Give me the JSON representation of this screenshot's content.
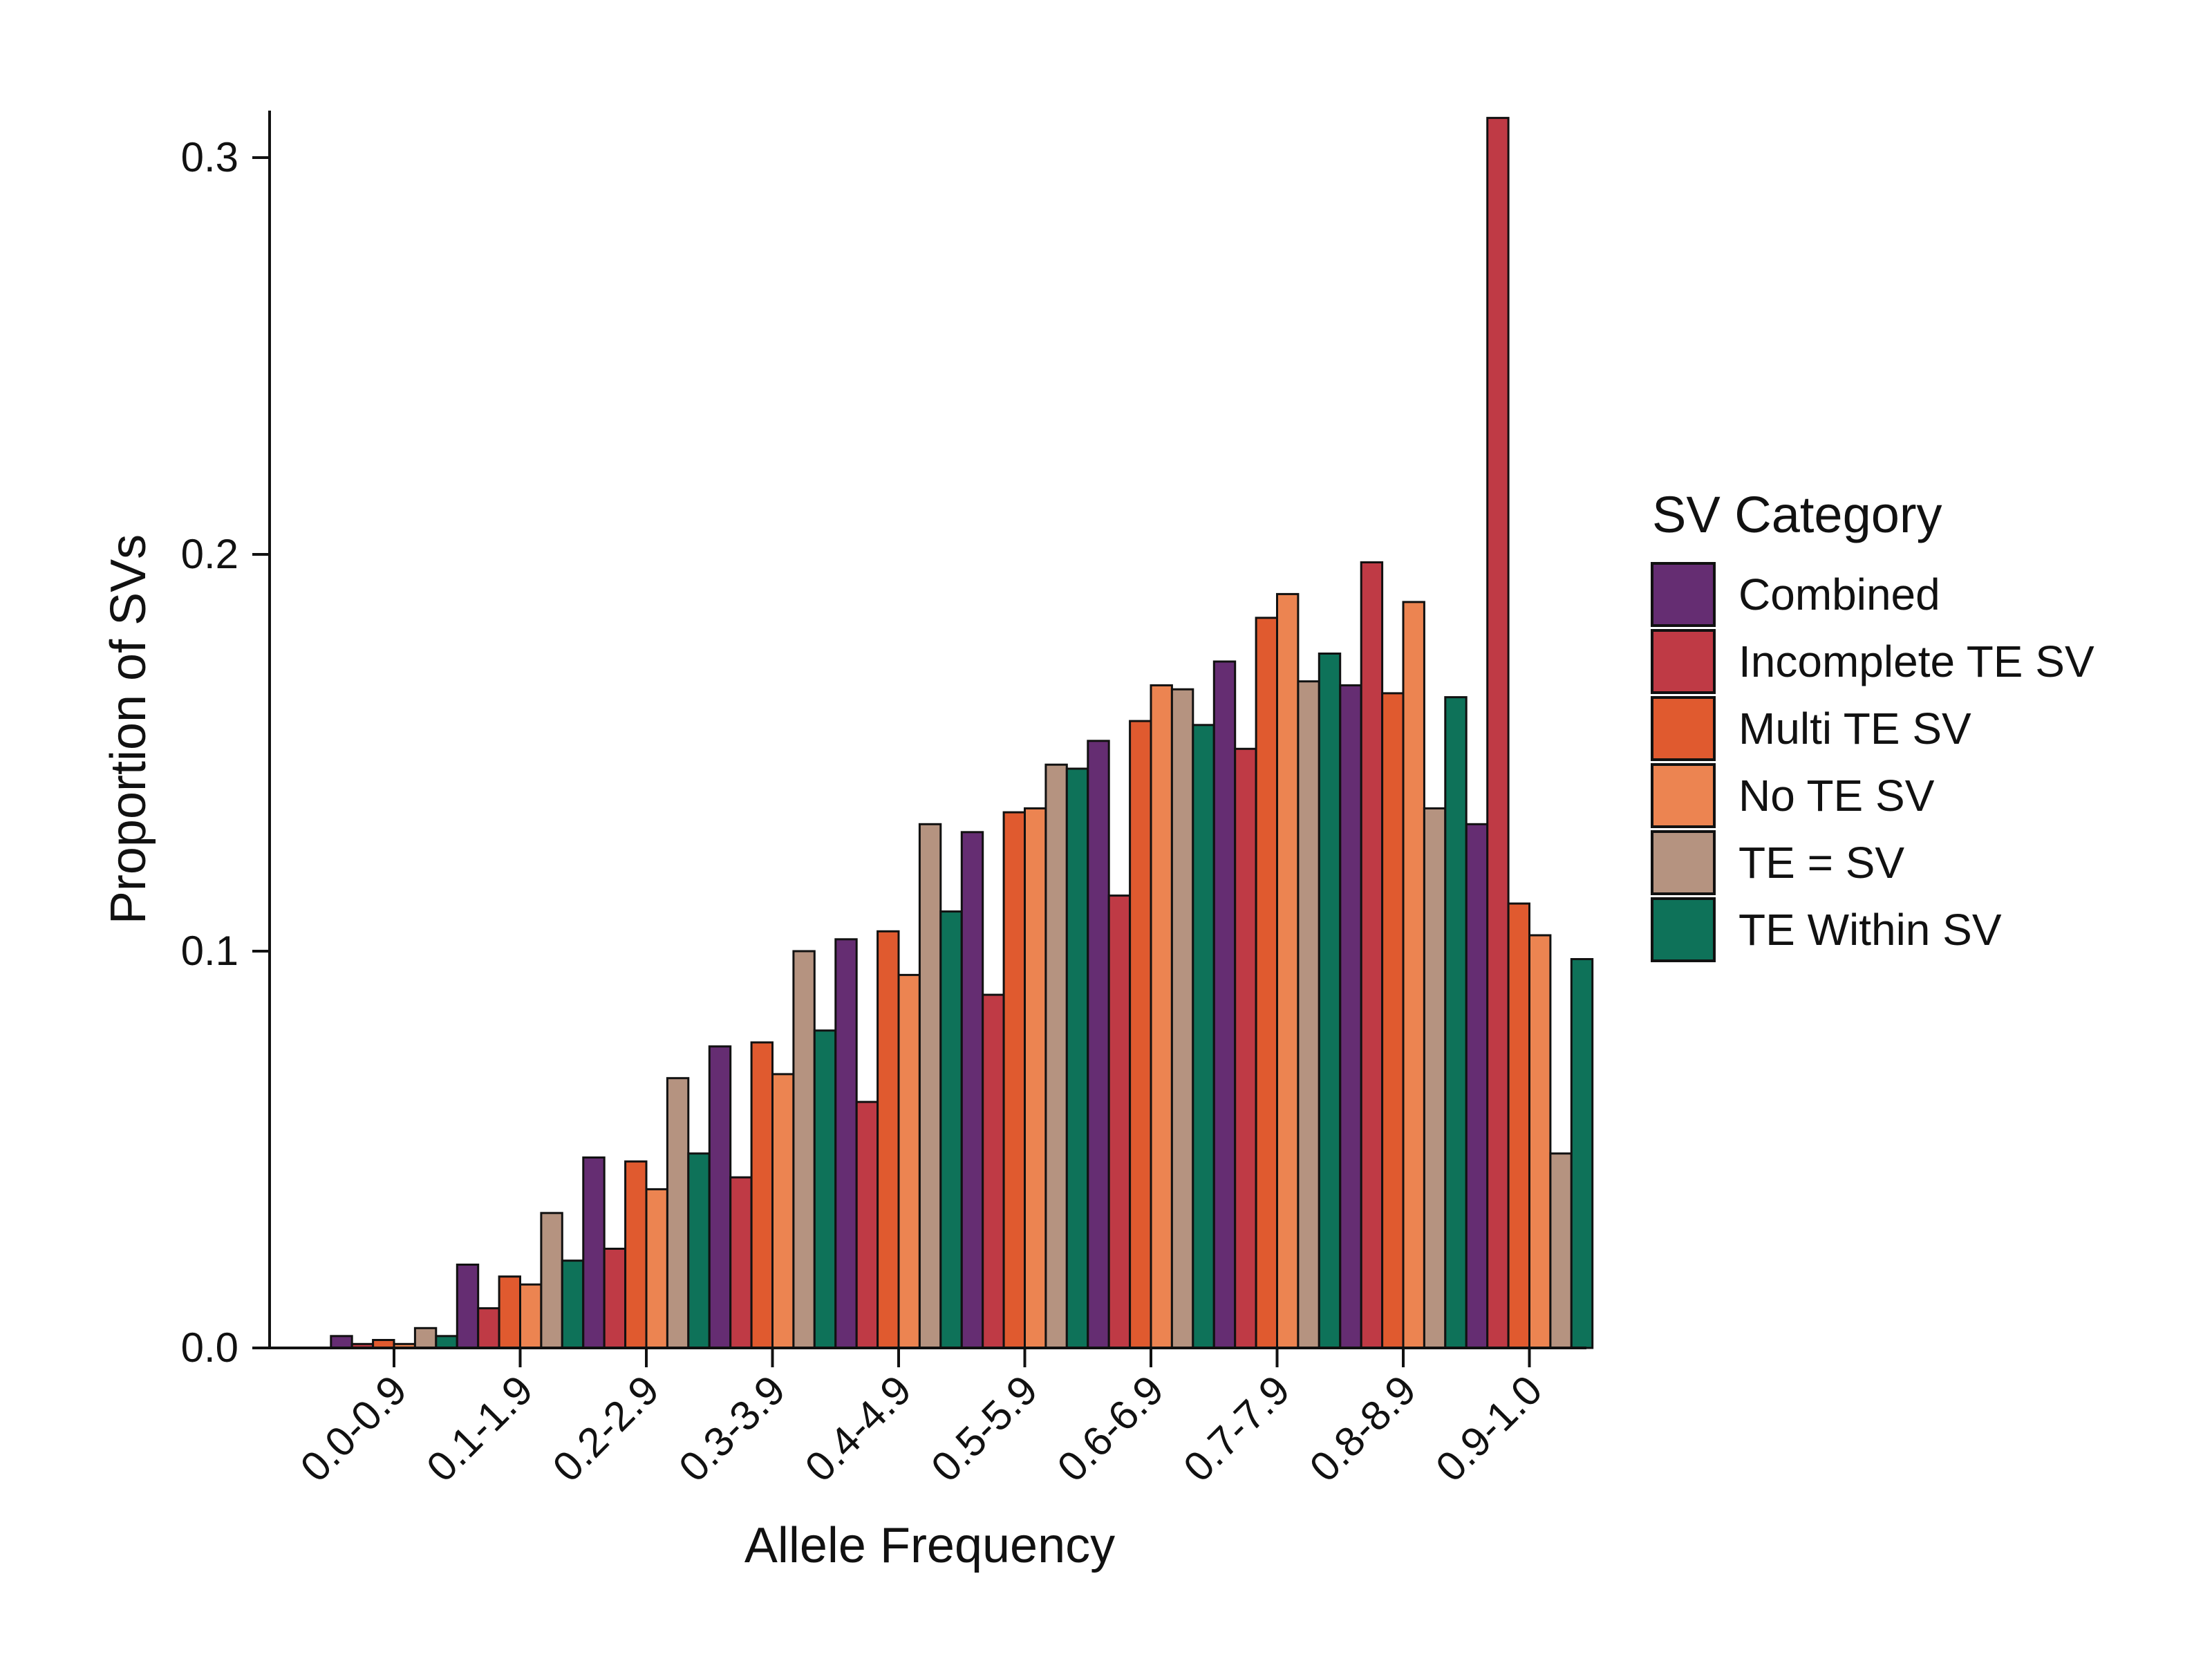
{
  "chart_data": {
    "type": "bar",
    "xlabel": "Allele Frequency",
    "ylabel": "Proportion of SVs",
    "ylim": [
      0,
      0.31
    ],
    "yticks": [
      0.0,
      0.1,
      0.2,
      0.3
    ],
    "ytick_labels": [
      "0.0",
      "0.1",
      "0.2",
      "0.3"
    ],
    "categories": [
      "0.0-0.9",
      "0.1-1.9",
      "0.2-2.9",
      "0.3-3.9",
      "0.4-4.9",
      "0.5-5.9",
      "0.6-6.9",
      "0.7-7.9",
      "0.8-8.9",
      "0.9-1.0"
    ],
    "legend_title": "SV Category",
    "legend_position": "right",
    "grid": false,
    "series": [
      {
        "name": "Combined",
        "color": "#652D72",
        "values": [
          0.003,
          0.021,
          0.048,
          0.076,
          0.103,
          0.13,
          0.153,
          0.173,
          0.167,
          0.132
        ]
      },
      {
        "name": "Incomplete TE SV",
        "color": "#BF3A45",
        "values": [
          0.001,
          0.01,
          0.025,
          0.043,
          0.062,
          0.089,
          0.114,
          0.151,
          0.198,
          0.31
        ]
      },
      {
        "name": "Multi TE SV",
        "color": "#E05A2F",
        "values": [
          0.002,
          0.018,
          0.047,
          0.077,
          0.105,
          0.135,
          0.158,
          0.184,
          0.165,
          0.112
        ]
      },
      {
        "name": "No TE SV",
        "color": "#EC8451",
        "values": [
          0.001,
          0.016,
          0.04,
          0.069,
          0.094,
          0.136,
          0.167,
          0.19,
          0.188,
          0.104
        ]
      },
      {
        "name": "TE = SV",
        "color": "#B59380",
        "values": [
          0.005,
          0.034,
          0.068,
          0.1,
          0.132,
          0.147,
          0.166,
          0.168,
          0.136,
          0.049
        ]
      },
      {
        "name": "TE Within SV",
        "color": "#0E7259",
        "values": [
          0.003,
          0.022,
          0.049,
          0.08,
          0.11,
          0.146,
          0.157,
          0.175,
          0.164,
          0.098
        ]
      }
    ]
  }
}
